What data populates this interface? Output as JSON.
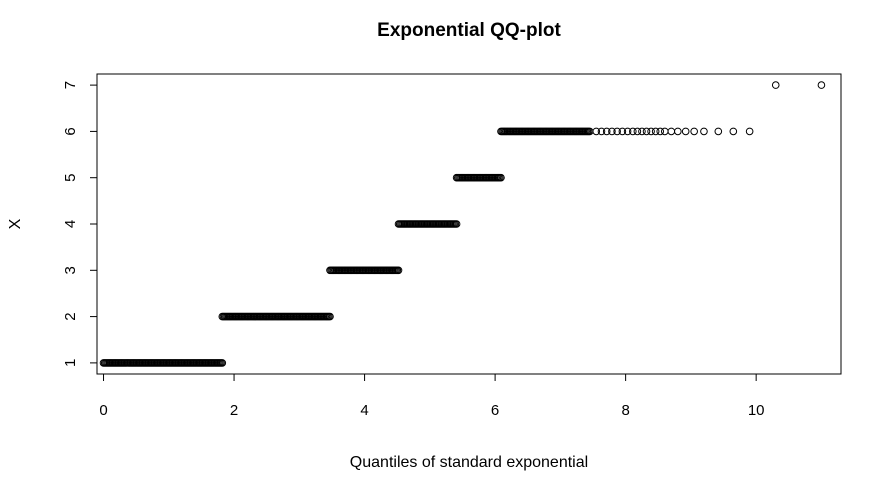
{
  "chart_data": {
    "type": "scatter",
    "title": "Exponential QQ-plot",
    "xlabel": "Quantiles of standard exponential",
    "ylabel": "X",
    "xlim": [
      -0.1,
      11.3
    ],
    "ylim": [
      0.76,
      7.24
    ],
    "xticks": [
      0,
      2,
      4,
      6,
      8,
      10
    ],
    "yticks": [
      1,
      2,
      3,
      4,
      5,
      6,
      7
    ],
    "xtick_labels": [
      "0",
      "2",
      "4",
      "6",
      "8",
      "10"
    ],
    "ytick_labels": [
      "1",
      "2",
      "3",
      "4",
      "5",
      "6",
      "7"
    ],
    "grid": false,
    "legend": "none",
    "marker": "open-circle",
    "series": [
      {
        "segments": [
          {
            "y": 1,
            "x_dense": [
              0.0,
              1.82
            ]
          },
          {
            "y": 2,
            "x_dense": [
              1.82,
              3.47
            ]
          },
          {
            "y": 3,
            "x_dense": [
              3.47,
              4.52
            ]
          },
          {
            "y": 4,
            "x_dense": [
              4.52,
              5.41
            ]
          },
          {
            "y": 5,
            "x_dense": [
              5.41,
              6.09
            ]
          },
          {
            "y": 6,
            "x_dense": [
              6.09,
              7.45
            ]
          }
        ],
        "sparse_points": [
          {
            "x": 7.55,
            "y": 6
          },
          {
            "x": 7.63,
            "y": 6
          },
          {
            "x": 7.71,
            "y": 6
          },
          {
            "x": 7.79,
            "y": 6
          },
          {
            "x": 7.87,
            "y": 6
          },
          {
            "x": 7.95,
            "y": 6
          },
          {
            "x": 8.03,
            "y": 6
          },
          {
            "x": 8.11,
            "y": 6
          },
          {
            "x": 8.18,
            "y": 6
          },
          {
            "x": 8.25,
            "y": 6
          },
          {
            "x": 8.32,
            "y": 6
          },
          {
            "x": 8.39,
            "y": 6
          },
          {
            "x": 8.46,
            "y": 6
          },
          {
            "x": 8.53,
            "y": 6
          },
          {
            "x": 8.6,
            "y": 6
          },
          {
            "x": 8.7,
            "y": 6
          },
          {
            "x": 8.8,
            "y": 6
          },
          {
            "x": 8.92,
            "y": 6
          },
          {
            "x": 9.05,
            "y": 6
          },
          {
            "x": 9.2,
            "y": 6
          },
          {
            "x": 9.42,
            "y": 6
          },
          {
            "x": 9.65,
            "y": 6
          },
          {
            "x": 9.9,
            "y": 6
          },
          {
            "x": 10.3,
            "y": 7
          },
          {
            "x": 11.0,
            "y": 7
          }
        ]
      }
    ]
  }
}
